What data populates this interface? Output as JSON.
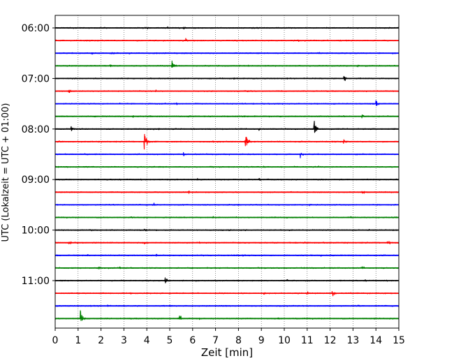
{
  "chart_data": {
    "type": "line",
    "title": "",
    "xlabel": "Zeit  [min]",
    "ylabel": "UTC (Lokalzeit = UTC + 01:00)",
    "xlim": [
      0,
      15
    ],
    "x_ticks": [
      "0",
      "1",
      "2",
      "3",
      "4",
      "5",
      "6",
      "7",
      "8",
      "9",
      "10",
      "11",
      "12",
      "13",
      "14",
      "15"
    ],
    "grid": "vertical dotted",
    "legend": "none",
    "y_tick_labels": [
      "06:00",
      "07:00",
      "08:00",
      "09:00",
      "10:00",
      "11:00"
    ],
    "trace_colors": [
      "#000000",
      "#ff0000",
      "#0000ff",
      "#008000"
    ],
    "traces": [
      {
        "start": "06:00",
        "color": "#000000",
        "events": [
          [
            4.0,
            0.6
          ],
          [
            4.9,
            0.5
          ],
          [
            5.6,
            0.5
          ],
          [
            8.8,
            0.4
          ],
          [
            11.8,
            0.4
          ],
          [
            12.1,
            0.4
          ]
        ]
      },
      {
        "start": "06:15",
        "color": "#ff0000",
        "events": [
          [
            5.7,
            0.6
          ],
          [
            8.2,
            0.4
          ],
          [
            10.6,
            0.4
          ],
          [
            12.4,
            0.4
          ]
        ]
      },
      {
        "start": "06:30",
        "color": "#0000ff",
        "events": [
          [
            1.6,
            0.5
          ],
          [
            2.5,
            0.5
          ],
          [
            3.2,
            0.5
          ],
          [
            5.0,
            0.4
          ],
          [
            11.5,
            0.4
          ]
        ]
      },
      {
        "start": "06:45",
        "color": "#008000",
        "events": [
          [
            2.4,
            0.5
          ],
          [
            5.1,
            2.6
          ],
          [
            8.4,
            0.4
          ],
          [
            11.1,
            0.4
          ],
          [
            13.2,
            0.4
          ]
        ]
      },
      {
        "start": "07:00",
        "color": "#000000",
        "events": [
          [
            5.6,
            0.4
          ],
          [
            7.8,
            0.4
          ],
          [
            12.6,
            1.9
          ]
        ]
      },
      {
        "start": "07:15",
        "color": "#ff0000",
        "events": [
          [
            0.6,
            0.9
          ],
          [
            4.4,
            0.4
          ],
          [
            8.4,
            0.4
          ],
          [
            13.4,
            0.4
          ]
        ]
      },
      {
        "start": "07:30",
        "color": "#0000ff",
        "events": [
          [
            2.8,
            0.4
          ],
          [
            5.3,
            0.4
          ],
          [
            8.6,
            0.4
          ],
          [
            14.0,
            1.2
          ]
        ]
      },
      {
        "start": "07:45",
        "color": "#008000",
        "events": [
          [
            1.7,
            0.5
          ],
          [
            3.4,
            0.4
          ],
          [
            7.3,
            0.4
          ],
          [
            9.8,
            0.4
          ],
          [
            13.4,
            1.0
          ]
        ]
      },
      {
        "start": "08:00",
        "color": "#000000",
        "events": [
          [
            0.7,
            1.0
          ],
          [
            4.5,
            0.5
          ],
          [
            8.9,
            0.5
          ],
          [
            11.3,
            3.6
          ]
        ]
      },
      {
        "start": "08:15",
        "color": "#ff0000",
        "events": [
          [
            3.9,
            3.8
          ],
          [
            6.9,
            0.5
          ],
          [
            8.3,
            3.6
          ],
          [
            12.6,
            0.9
          ]
        ]
      },
      {
        "start": "08:30",
        "color": "#0000ff",
        "events": [
          [
            5.6,
            0.7
          ],
          [
            10.7,
            1.9
          ]
        ]
      },
      {
        "start": "08:45",
        "color": "#008000",
        "events": [
          [
            4.3,
            0.4
          ],
          [
            6.8,
            0.5
          ],
          [
            9.1,
            0.4
          ],
          [
            11.5,
            0.4
          ]
        ]
      },
      {
        "start": "09:00",
        "color": "#000000",
        "events": [
          [
            2.6,
            0.4
          ],
          [
            6.2,
            0.4
          ],
          [
            8.9,
            0.5
          ],
          [
            15.0,
            0.6
          ]
        ]
      },
      {
        "start": "09:15",
        "color": "#ff0000",
        "events": [
          [
            5.8,
            0.6
          ],
          [
            13.4,
            0.8
          ],
          [
            10.3,
            0.4
          ]
        ]
      },
      {
        "start": "09:30",
        "color": "#0000ff",
        "events": [
          [
            4.3,
            0.6
          ],
          [
            8.0,
            0.4
          ],
          [
            11.1,
            0.4
          ]
        ]
      },
      {
        "start": "09:45",
        "color": "#008000",
        "events": [
          [
            3.3,
            0.4
          ],
          [
            6.9,
            0.4
          ],
          [
            10.1,
            0.4
          ],
          [
            12.9,
            0.4
          ]
        ]
      },
      {
        "start": "10:00",
        "color": "#000000",
        "events": [
          [
            3.9,
            0.4
          ],
          [
            7.6,
            0.4
          ],
          [
            10.3,
            0.4
          ],
          [
            13.7,
            0.4
          ]
        ]
      },
      {
        "start": "10:15",
        "color": "#ff0000",
        "events": [
          [
            0.6,
            0.9
          ],
          [
            3.9,
            0.5
          ],
          [
            6.3,
            0.4
          ],
          [
            10.2,
            0.4
          ],
          [
            14.5,
            1.2
          ]
        ]
      },
      {
        "start": "10:30",
        "color": "#0000ff",
        "events": [
          [
            1.4,
            0.4
          ],
          [
            4.4,
            0.4
          ],
          [
            8.2,
            0.4
          ],
          [
            11.6,
            0.4
          ]
        ]
      },
      {
        "start": "10:45",
        "color": "#008000",
        "events": [
          [
            1.9,
            0.5
          ],
          [
            2.8,
            0.5
          ],
          [
            6.6,
            0.4
          ],
          [
            13.4,
            1.0
          ]
        ]
      },
      {
        "start": "11:00",
        "color": "#000000",
        "events": [
          [
            4.8,
            1.4
          ],
          [
            7.9,
            0.5
          ],
          [
            10.1,
            0.5
          ],
          [
            12.4,
            0.4
          ],
          [
            13.5,
            0.4
          ]
        ]
      },
      {
        "start": "11:15",
        "color": "#ff0000",
        "events": [
          [
            3.3,
            0.4
          ],
          [
            9.1,
            0.6
          ],
          [
            11.0,
            0.6
          ],
          [
            12.1,
            1.4
          ],
          [
            12.9,
            0.4
          ]
        ]
      },
      {
        "start": "11:30",
        "color": "#0000ff",
        "events": [
          [
            2.3,
            0.4
          ],
          [
            5.0,
            0.4
          ],
          [
            7.4,
            0.4
          ],
          [
            9.8,
            0.4
          ],
          [
            13.2,
            0.4
          ]
        ]
      },
      {
        "start": "11:45",
        "color": "#008000",
        "events": [
          [
            1.1,
            2.3
          ],
          [
            5.4,
            1.6
          ],
          [
            6.3,
            0.5
          ],
          [
            9.7,
            0.4
          ],
          [
            13.9,
            0.4
          ]
        ]
      }
    ]
  }
}
